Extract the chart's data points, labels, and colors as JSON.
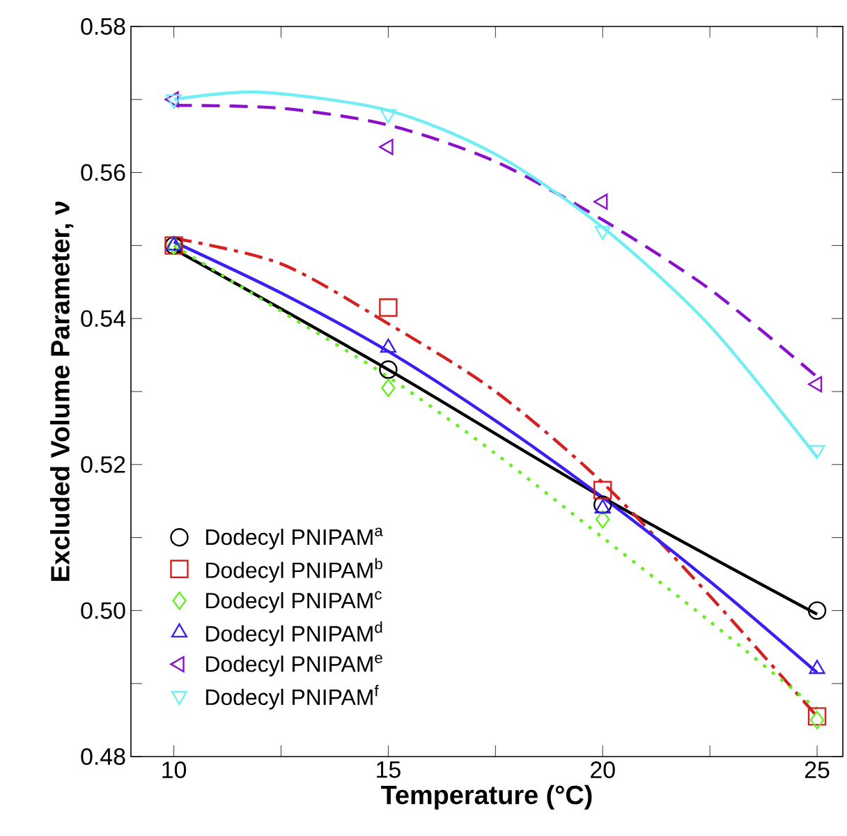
{
  "chart_data": {
    "type": "scatter",
    "xlabel": "Temperature (°C)",
    "ylabel": "Excluded Volume Parameter, ν",
    "x": [
      10,
      15,
      20,
      25
    ],
    "xlim": [
      9,
      25.6
    ],
    "ylim": [
      0.48,
      0.58
    ],
    "xticks": [
      10,
      {
        "value": 12.5,
        "label": null
      },
      15,
      {
        "value": 17.5,
        "label": null
      },
      20,
      {
        "value": 22.5,
        "label": null
      },
      25
    ],
    "yticks": [
      0.48,
      {
        "value": 0.49,
        "label": null
      },
      {
        "value": 0.5,
        "label": "0.50"
      },
      {
        "value": 0.51,
        "label": null
      },
      0.52,
      {
        "value": 0.53,
        "label": null
      },
      0.54,
      {
        "value": 0.55,
        "label": null
      },
      0.56,
      {
        "value": 0.57,
        "label": null
      },
      0.58
    ],
    "legend": "bottom left",
    "grid": false,
    "series": [
      {
        "name": "Dodecyl PNIPAM$^{a}$",
        "marker": "circle",
        "color": "#000000",
        "values": [
          0.55,
          0.533,
          0.5145,
          0.5
        ]
      },
      {
        "name": "Dodecyl PNIPAM$^{b}$",
        "marker": "square",
        "color": "#d42020",
        "values": [
          0.55,
          0.5415,
          0.5165,
          0.4855
        ]
      },
      {
        "name": "Dodecyl PNIPAM$^{c}$",
        "marker": "diamond",
        "color": "#66ee22",
        "values": [
          0.55,
          0.5305,
          0.5125,
          0.485
        ]
      },
      {
        "name": "Dodecyl PNIPAM$^{d}$",
        "marker": "triangle",
        "color": "#3a20f0",
        "values": [
          0.55,
          0.536,
          0.514,
          0.492
        ]
      },
      {
        "name": "Dodecyl PNIPAM$^{e}$",
        "marker": "triangle-left",
        "color": "#8a10cc",
        "values": [
          0.57,
          0.5635,
          0.556,
          0.531
        ]
      },
      {
        "name": "Dodecyl PNIPAM$^{f}$",
        "marker": "triangle-down",
        "color": "#70eef4",
        "values": [
          0.57,
          0.568,
          0.552,
          0.522
        ]
      },
      {
        "type": "line",
        "line_style": "solid",
        "color": "#000000",
        "x": [
          10,
          15,
          20,
          25
        ],
        "values": [
          0.5495,
          0.533,
          0.5155,
          0.4995
        ]
      },
      {
        "type": "line",
        "line_style": "dashdot",
        "color": "#d42020",
        "x": [
          10,
          12.5,
          15,
          17.5,
          20,
          22.5,
          25
        ],
        "values": [
          0.551,
          0.5475,
          0.5393,
          0.53,
          0.5175,
          0.502,
          0.4855
        ]
      },
      {
        "type": "line",
        "line_style": "dotted",
        "color": "#66ee22",
        "x": [
          10,
          12.5,
          15,
          17.5,
          20,
          22.5,
          25
        ],
        "values": [
          0.55,
          0.541,
          0.532,
          0.5215,
          0.51,
          0.4985,
          0.4865
        ]
      },
      {
        "type": "line",
        "line_style": "solid",
        "color": "#3a20f0",
        "x": [
          10,
          12.5,
          15,
          17.5,
          20,
          22.5,
          25
        ],
        "values": [
          0.5505,
          0.5435,
          0.5355,
          0.526,
          0.5155,
          0.504,
          0.4915
        ]
      },
      {
        "type": "line",
        "line_style": "dashed",
        "color": "#8a10cc",
        "x": [
          10,
          12.5,
          15,
          17.5,
          20,
          22.5,
          25
        ],
        "values": [
          0.5692,
          0.5688,
          0.5665,
          0.5615,
          0.5535,
          0.544,
          0.532
        ]
      },
      {
        "type": "line",
        "line_style": "solid",
        "color": "#70eef4",
        "x": [
          10,
          12,
          15,
          17.5,
          20,
          22.5,
          25
        ],
        "values": [
          0.57,
          0.571,
          0.5685,
          0.5625,
          0.5525,
          0.539,
          0.521
        ]
      }
    ]
  }
}
